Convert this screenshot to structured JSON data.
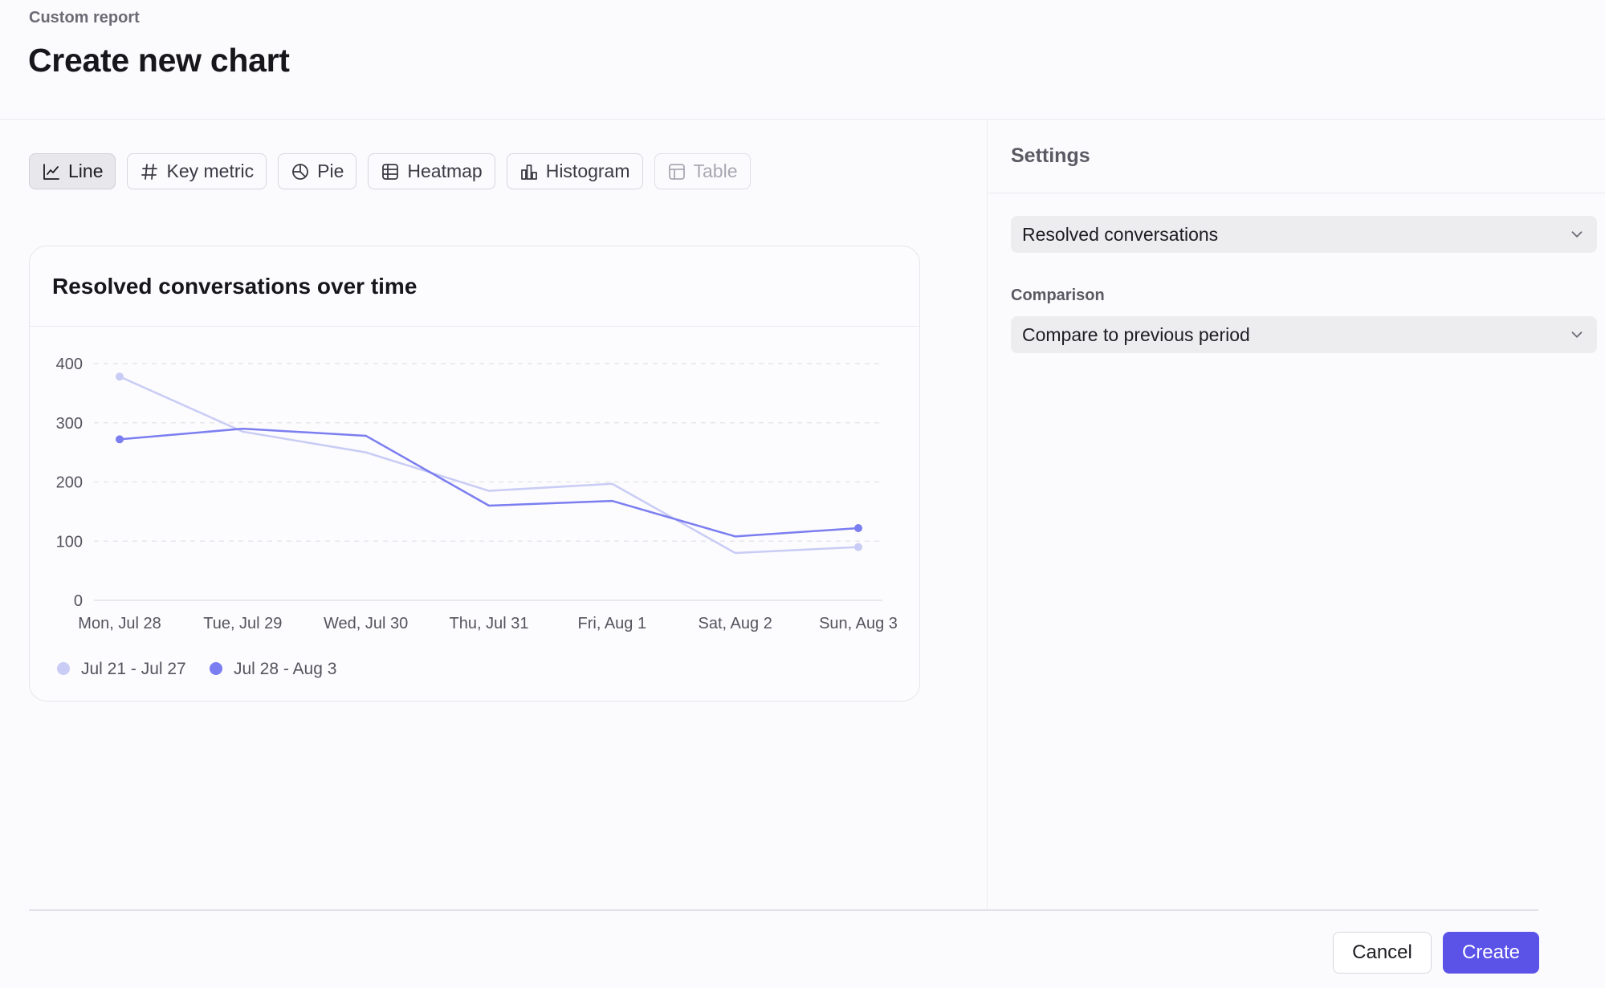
{
  "header": {
    "breadcrumb": "Custom report",
    "title": "Create new chart"
  },
  "chart_types": [
    {
      "label": "Line",
      "icon": "line-chart-icon",
      "state": "active"
    },
    {
      "label": "Key metric",
      "icon": "hash-icon",
      "state": "normal"
    },
    {
      "label": "Pie",
      "icon": "pie-chart-icon",
      "state": "normal"
    },
    {
      "label": "Heatmap",
      "icon": "grid-icon",
      "state": "normal"
    },
    {
      "label": "Histogram",
      "icon": "bar-chart-icon",
      "state": "normal"
    },
    {
      "label": "Table",
      "icon": "table-icon",
      "state": "disabled"
    }
  ],
  "chart_data": {
    "type": "line",
    "title": "Resolved conversations over time",
    "categories": [
      "Mon, Jul 28",
      "Tue, Jul 29",
      "Wed, Jul 30",
      "Thu, Jul 31",
      "Fri, Aug 1",
      "Sat, Aug 2",
      "Sun, Aug 3"
    ],
    "series": [
      {
        "name": "Jul 21 - Jul 27",
        "color": "#c9ccf5",
        "values": [
          378,
          285,
          250,
          185,
          197,
          80,
          90
        ]
      },
      {
        "name": "Jul 28 - Aug 3",
        "color": "#7b7ef0",
        "values": [
          272,
          290,
          278,
          160,
          168,
          108,
          122
        ]
      }
    ],
    "yticks": [
      0,
      100,
      200,
      300,
      400
    ],
    "ylim": [
      0,
      400
    ],
    "grid": true,
    "legend": "bottom-left"
  },
  "settings": {
    "title": "Settings",
    "metric_value": "Resolved conversations",
    "comparison_label": "Comparison",
    "comparison_value": "Compare to previous period"
  },
  "footer": {
    "cancel_label": "Cancel",
    "create_label": "Create"
  },
  "colors": {
    "accent": "#5b52e8",
    "series_previous": "#c9ccf5",
    "series_current": "#7b7ef0"
  }
}
